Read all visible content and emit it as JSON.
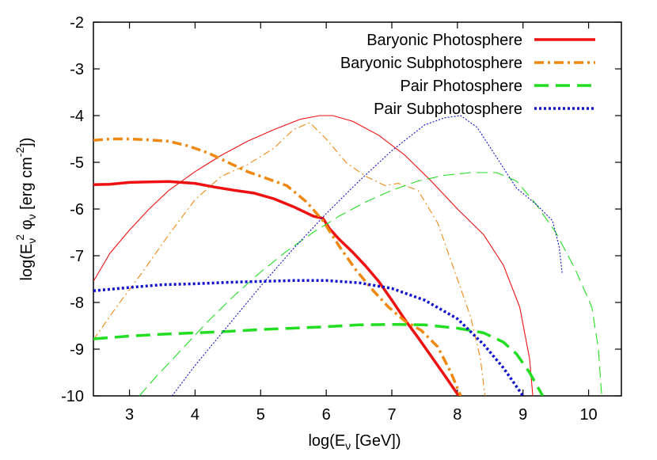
{
  "chart_data": {
    "type": "line",
    "xlabel": "log(E",
    "xlabel_sub": "ν",
    "xlabel_tail": " [GeV])",
    "ylabel_parts": [
      "log(E",
      "ν",
      "2",
      " φ",
      "ν",
      " [erg cm",
      "-2",
      "])"
    ],
    "xlim": [
      2.45,
      10.5
    ],
    "ylim": [
      -10,
      -2
    ],
    "xticks": [
      3,
      4,
      5,
      6,
      7,
      8,
      9,
      10
    ],
    "yticks": [
      -2,
      -3,
      -4,
      -5,
      -6,
      -7,
      -8,
      -9,
      -10
    ],
    "legend_position": "top-right",
    "grid": false,
    "series": [
      {
        "name": "Baryonic Photosphere",
        "color": "#ee1111",
        "style": "solid",
        "thick": [
          [
            2.45,
            -5.48
          ],
          [
            2.7,
            -5.47
          ],
          [
            3.0,
            -5.43
          ],
          [
            3.3,
            -5.42
          ],
          [
            3.6,
            -5.41
          ],
          [
            4.0,
            -5.45
          ],
          [
            4.3,
            -5.53
          ],
          [
            4.6,
            -5.6
          ],
          [
            4.9,
            -5.66
          ],
          [
            5.2,
            -5.78
          ],
          [
            5.5,
            -5.95
          ],
          [
            5.8,
            -6.15
          ],
          [
            5.95,
            -6.2
          ],
          [
            6.05,
            -6.42
          ],
          [
            6.2,
            -6.65
          ],
          [
            6.4,
            -6.92
          ],
          [
            6.6,
            -7.22
          ],
          [
            6.8,
            -7.55
          ],
          [
            7.0,
            -7.95
          ],
          [
            7.2,
            -8.37
          ],
          [
            7.4,
            -8.75
          ],
          [
            7.6,
            -9.15
          ],
          [
            7.8,
            -9.55
          ],
          [
            8.02,
            -10.0
          ]
        ],
        "thin": [
          [
            2.45,
            -7.55
          ],
          [
            2.7,
            -6.95
          ],
          [
            3.0,
            -6.45
          ],
          [
            3.3,
            -6.0
          ],
          [
            3.6,
            -5.6
          ],
          [
            4.0,
            -5.2
          ],
          [
            4.4,
            -4.85
          ],
          [
            4.8,
            -4.55
          ],
          [
            5.2,
            -4.3
          ],
          [
            5.6,
            -4.08
          ],
          [
            5.9,
            -4.0
          ],
          [
            6.1,
            -4.0
          ],
          [
            6.4,
            -4.12
          ],
          [
            6.8,
            -4.42
          ],
          [
            7.2,
            -4.85
          ],
          [
            7.6,
            -5.4
          ],
          [
            8.0,
            -6.0
          ],
          [
            8.4,
            -6.55
          ],
          [
            8.7,
            -7.2
          ],
          [
            8.95,
            -8.1
          ],
          [
            9.1,
            -9.2
          ],
          [
            9.15,
            -10.0
          ]
        ]
      },
      {
        "name": "Baryonic Subphotosphere",
        "color": "#ee8811",
        "style": "dashdot",
        "thick": [
          [
            2.45,
            -4.53
          ],
          [
            2.7,
            -4.5
          ],
          [
            3.0,
            -4.5
          ],
          [
            3.3,
            -4.52
          ],
          [
            3.6,
            -4.55
          ],
          [
            3.9,
            -4.65
          ],
          [
            4.2,
            -4.8
          ],
          [
            4.5,
            -5.0
          ],
          [
            4.8,
            -5.2
          ],
          [
            5.1,
            -5.35
          ],
          [
            5.4,
            -5.5
          ],
          [
            5.7,
            -5.85
          ],
          [
            5.95,
            -6.25
          ],
          [
            6.2,
            -6.8
          ],
          [
            6.45,
            -7.3
          ],
          [
            6.7,
            -7.72
          ],
          [
            6.95,
            -8.1
          ],
          [
            7.2,
            -8.4
          ],
          [
            7.45,
            -8.6
          ],
          [
            7.7,
            -8.95
          ],
          [
            7.9,
            -9.5
          ],
          [
            8.05,
            -10.0
          ]
        ],
        "thin": [
          [
            2.45,
            -8.8
          ],
          [
            2.8,
            -8.1
          ],
          [
            3.2,
            -7.35
          ],
          [
            3.6,
            -6.55
          ],
          [
            4.0,
            -5.8
          ],
          [
            4.4,
            -5.3
          ],
          [
            4.8,
            -5.05
          ],
          [
            5.2,
            -4.7
          ],
          [
            5.5,
            -4.3
          ],
          [
            5.75,
            -4.15
          ],
          [
            6.0,
            -4.5
          ],
          [
            6.3,
            -5.0
          ],
          [
            6.6,
            -5.3
          ],
          [
            6.9,
            -5.5
          ],
          [
            7.1,
            -5.45
          ],
          [
            7.4,
            -5.6
          ],
          [
            7.7,
            -6.3
          ],
          [
            7.95,
            -7.3
          ],
          [
            8.2,
            -8.3
          ],
          [
            8.35,
            -9.2
          ],
          [
            8.42,
            -10.0
          ]
        ]
      },
      {
        "name": "Pair Photosphere",
        "color": "#22dd22",
        "style": "dashed",
        "thick": [
          [
            2.45,
            -8.78
          ],
          [
            3.0,
            -8.72
          ],
          [
            3.5,
            -8.68
          ],
          [
            4.0,
            -8.65
          ],
          [
            4.5,
            -8.62
          ],
          [
            5.0,
            -8.58
          ],
          [
            5.5,
            -8.55
          ],
          [
            6.0,
            -8.52
          ],
          [
            6.5,
            -8.48
          ],
          [
            7.0,
            -8.47
          ],
          [
            7.5,
            -8.48
          ],
          [
            8.0,
            -8.55
          ],
          [
            8.4,
            -8.65
          ],
          [
            8.7,
            -8.85
          ],
          [
            8.9,
            -9.1
          ],
          [
            9.1,
            -9.5
          ],
          [
            9.3,
            -10.0
          ]
        ],
        "thin": [
          [
            3.15,
            -10.0
          ],
          [
            3.4,
            -9.6
          ],
          [
            3.8,
            -9.0
          ],
          [
            4.2,
            -8.4
          ],
          [
            4.6,
            -7.85
          ],
          [
            5.0,
            -7.35
          ],
          [
            5.4,
            -6.9
          ],
          [
            5.8,
            -6.5
          ],
          [
            6.2,
            -6.15
          ],
          [
            6.6,
            -5.85
          ],
          [
            7.0,
            -5.6
          ],
          [
            7.4,
            -5.4
          ],
          [
            7.8,
            -5.28
          ],
          [
            8.2,
            -5.22
          ],
          [
            8.6,
            -5.22
          ],
          [
            8.9,
            -5.4
          ],
          [
            9.2,
            -5.9
          ],
          [
            9.5,
            -6.5
          ],
          [
            9.8,
            -7.3
          ],
          [
            10.05,
            -8.1
          ],
          [
            10.15,
            -9.0
          ],
          [
            10.2,
            -10.0
          ]
        ]
      },
      {
        "name": "Pair Subphotosphere",
        "color": "#1111cc",
        "style": "dotted",
        "thick": [
          [
            2.45,
            -7.75
          ],
          [
            3.0,
            -7.68
          ],
          [
            3.5,
            -7.62
          ],
          [
            4.0,
            -7.6
          ],
          [
            4.5,
            -7.57
          ],
          [
            5.0,
            -7.55
          ],
          [
            5.5,
            -7.53
          ],
          [
            6.0,
            -7.53
          ],
          [
            6.5,
            -7.58
          ],
          [
            7.0,
            -7.7
          ],
          [
            7.5,
            -7.95
          ],
          [
            8.0,
            -8.35
          ],
          [
            8.4,
            -8.9
          ],
          [
            8.7,
            -9.4
          ],
          [
            9.0,
            -10.0
          ]
        ],
        "thin": [
          [
            3.65,
            -10.0
          ],
          [
            4.0,
            -9.35
          ],
          [
            4.5,
            -8.5
          ],
          [
            5.0,
            -7.65
          ],
          [
            5.5,
            -6.85
          ],
          [
            6.0,
            -6.1
          ],
          [
            6.5,
            -5.4
          ],
          [
            7.0,
            -4.75
          ],
          [
            7.5,
            -4.2
          ],
          [
            7.8,
            -4.05
          ],
          [
            8.05,
            -4.0
          ],
          [
            8.3,
            -4.25
          ],
          [
            8.6,
            -4.9
          ],
          [
            8.9,
            -5.55
          ],
          [
            9.2,
            -5.9
          ],
          [
            9.45,
            -6.25
          ],
          [
            9.55,
            -6.8
          ],
          [
            9.6,
            -7.4
          ]
        ]
      }
    ]
  }
}
